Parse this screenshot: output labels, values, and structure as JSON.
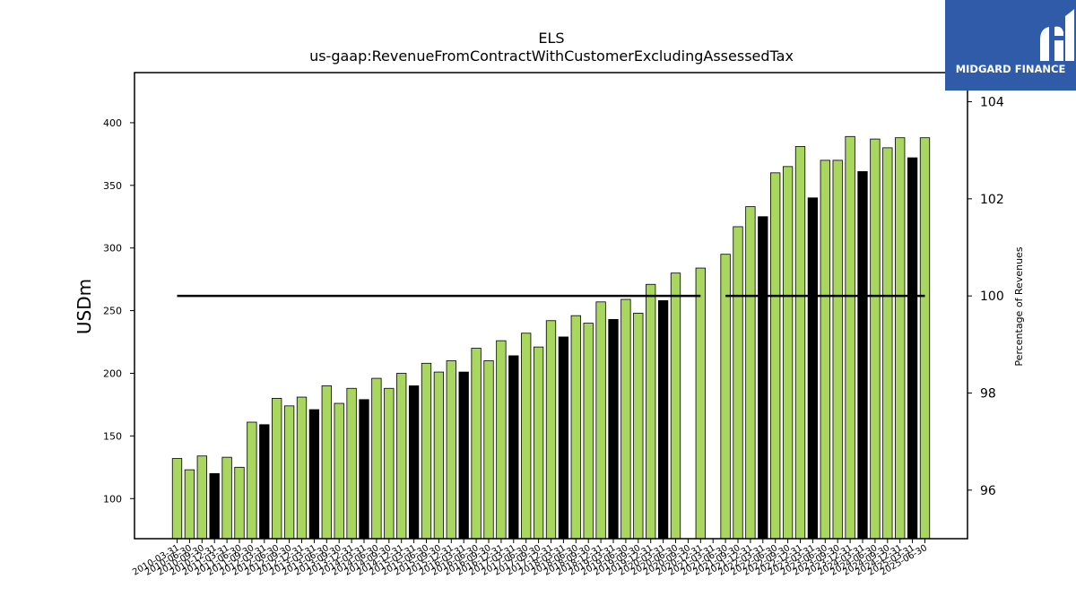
{
  "chart_data": {
    "type": "bar",
    "title": "ELS",
    "subtitle": "us-gaap:RevenueFromContractWithCustomerExcludingAssessedTax",
    "ylabel": "USDm",
    "y2label": "Percentage of Revenues",
    "ylim": [
      68,
      440
    ],
    "y2lim": [
      95.0,
      104.6
    ],
    "yticks": [
      100,
      150,
      200,
      250,
      300,
      350,
      400
    ],
    "y2ticks": [
      96,
      98,
      100,
      102,
      104
    ],
    "x_tick_labels": [
      "2010-03-31",
      "2010-06-30",
      "2010-09-30",
      "2010-12-31",
      "2011-03-31",
      "2011-06-30",
      "2011-09-30",
      "2012-03-31",
      "2012-06-30",
      "2012-09-30",
      "2012-12-31",
      "2013-03-31",
      "2013-06-30",
      "2013-09-30",
      "2013-12-31",
      "2014-03-31",
      "2014-06-30",
      "2014-09-30",
      "2014-12-31",
      "2015-03-31",
      "2015-06-30",
      "2015-09-30",
      "2015-12-31",
      "2016-03-31",
      "2016-06-30",
      "2016-09-30",
      "2016-12-31",
      "2017-03-31",
      "2017-06-30",
      "2017-09-30",
      "2017-12-31",
      "2018-03-31",
      "2018-06-30",
      "2018-09-30",
      "2018-12-31",
      "2019-03-31",
      "2019-06-30",
      "2019-09-30",
      "2019-12-31",
      "2020-03-31",
      "2020-06-30",
      "2020-09-30",
      "2020-12-31",
      "2021-03-31",
      "2021-06-30",
      "2021-09-30",
      "2021-12-31",
      "2022-03-31",
      "2022-06-30",
      "2022-09-30",
      "2022-12-31",
      "2023-03-31",
      "2023-06-30",
      "2023-09-30",
      "2023-12-31",
      "2024-03-31",
      "2024-06-30",
      "2024-09-30",
      "2024-12-31",
      "2025-03-31",
      "2025-06-30"
    ],
    "series": [
      {
        "type": "bar",
        "values": [
          132,
          123,
          134,
          120,
          133,
          125,
          161,
          159,
          180,
          174,
          181,
          171,
          190,
          176,
          188,
          179,
          196,
          188,
          200,
          190,
          208,
          201,
          210,
          201,
          220,
          210,
          226,
          214,
          232,
          221,
          242,
          229,
          246,
          240,
          257,
          243,
          259,
          248,
          271,
          258,
          280,
          null,
          284,
          null,
          295,
          317,
          333,
          325,
          360,
          365,
          381,
          340,
          370,
          370,
          389,
          361,
          387,
          380,
          388,
          372,
          388
        ],
        "highlight": [
          false,
          false,
          false,
          true,
          false,
          false,
          false,
          true,
          false,
          false,
          false,
          true,
          false,
          false,
          false,
          true,
          false,
          false,
          false,
          true,
          false,
          false,
          false,
          true,
          false,
          false,
          false,
          true,
          false,
          false,
          false,
          true,
          false,
          false,
          false,
          true,
          false,
          false,
          false,
          true,
          false,
          false,
          false,
          false,
          false,
          false,
          false,
          true,
          false,
          false,
          false,
          true,
          false,
          false,
          false,
          true,
          false,
          false,
          false,
          true,
          false
        ],
        "color": "#a8d65e",
        "highlight_color": "#000000"
      },
      {
        "type": "line",
        "axis": "right",
        "values": [
          100,
          100,
          100,
          100,
          100,
          100,
          100,
          100,
          100,
          100,
          100,
          100,
          100,
          100,
          100,
          100,
          100,
          100,
          100,
          100,
          100,
          100,
          100,
          100,
          100,
          100,
          100,
          100,
          100,
          100,
          100,
          100,
          100,
          100,
          100,
          100,
          100,
          100,
          100,
          100,
          100,
          100,
          100,
          null,
          100,
          100,
          100,
          100,
          100,
          100,
          100,
          100,
          100,
          100,
          100,
          100,
          100,
          100,
          100,
          100,
          100
        ],
        "color": "#000000"
      }
    ],
    "grid": false
  },
  "logo": {
    "text": "MIDGARD FINANCE",
    "color": "#2f5ba8"
  }
}
